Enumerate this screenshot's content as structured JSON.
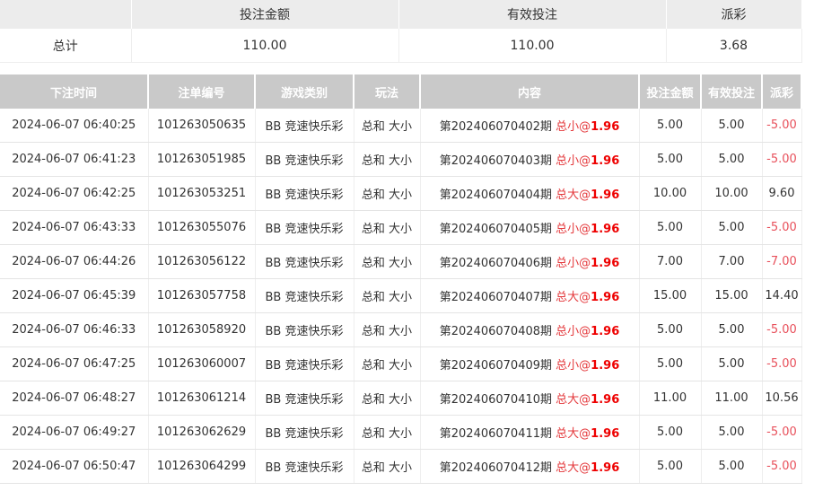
{
  "summary": {
    "headers": [
      "",
      "投注金额",
      "有效投注",
      "派彩"
    ],
    "label": "总计",
    "amount": "110.00",
    "valid": "110.00",
    "payout": "3.68"
  },
  "colors": {
    "red": "#e4393c",
    "header_bg": "#c9c9c9"
  },
  "table": {
    "headers": [
      "下注时间",
      "注单编号",
      "游戏类别",
      "玩法",
      "内容",
      "投注金额",
      "有效投注",
      "派彩"
    ],
    "rows": [
      {
        "time": "2024-06-07 06:40:25",
        "id": "101263050635",
        "game": "BB 竞速快乐彩",
        "play": "总和 大小",
        "period": "第202406070402期",
        "pick": "总小",
        "at": "@",
        "odds": "1.96",
        "amount": "5.00",
        "valid": "5.00",
        "payout": "-5.00",
        "neg": true
      },
      {
        "time": "2024-06-07 06:41:23",
        "id": "101263051985",
        "game": "BB 竞速快乐彩",
        "play": "总和 大小",
        "period": "第202406070403期",
        "pick": "总小",
        "at": "@",
        "odds": "1.96",
        "amount": "5.00",
        "valid": "5.00",
        "payout": "-5.00",
        "neg": true
      },
      {
        "time": "2024-06-07 06:42:25",
        "id": "101263053251",
        "game": "BB 竞速快乐彩",
        "play": "总和 大小",
        "period": "第202406070404期",
        "pick": "总大",
        "at": "@",
        "odds": "1.96",
        "amount": "10.00",
        "valid": "10.00",
        "payout": "9.60",
        "neg": false
      },
      {
        "time": "2024-06-07 06:43:33",
        "id": "101263055076",
        "game": "BB 竞速快乐彩",
        "play": "总和 大小",
        "period": "第202406070405期",
        "pick": "总小",
        "at": "@",
        "odds": "1.96",
        "amount": "5.00",
        "valid": "5.00",
        "payout": "-5.00",
        "neg": true
      },
      {
        "time": "2024-06-07 06:44:26",
        "id": "101263056122",
        "game": "BB 竞速快乐彩",
        "play": "总和 大小",
        "period": "第202406070406期",
        "pick": "总小",
        "at": "@",
        "odds": "1.96",
        "amount": "7.00",
        "valid": "7.00",
        "payout": "-7.00",
        "neg": true
      },
      {
        "time": "2024-06-07 06:45:39",
        "id": "101263057758",
        "game": "BB 竞速快乐彩",
        "play": "总和 大小",
        "period": "第202406070407期",
        "pick": "总大",
        "at": "@",
        "odds": "1.96",
        "amount": "15.00",
        "valid": "15.00",
        "payout": "14.40",
        "neg": false
      },
      {
        "time": "2024-06-07 06:46:33",
        "id": "101263058920",
        "game": "BB 竞速快乐彩",
        "play": "总和 大小",
        "period": "第202406070408期",
        "pick": "总小",
        "at": "@",
        "odds": "1.96",
        "amount": "5.00",
        "valid": "5.00",
        "payout": "-5.00",
        "neg": true
      },
      {
        "time": "2024-06-07 06:47:25",
        "id": "101263060007",
        "game": "BB 竞速快乐彩",
        "play": "总和 大小",
        "period": "第202406070409期",
        "pick": "总小",
        "at": "@",
        "odds": "1.96",
        "amount": "5.00",
        "valid": "5.00",
        "payout": "-5.00",
        "neg": true
      },
      {
        "time": "2024-06-07 06:48:27",
        "id": "101263061214",
        "game": "BB 竞速快乐彩",
        "play": "总和 大小",
        "period": "第202406070410期",
        "pick": "总大",
        "at": "@",
        "odds": "1.96",
        "amount": "11.00",
        "valid": "11.00",
        "payout": "10.56",
        "neg": false
      },
      {
        "time": "2024-06-07 06:49:27",
        "id": "101263062629",
        "game": "BB 竞速快乐彩",
        "play": "总和 大小",
        "period": "第202406070411期",
        "pick": "总大",
        "at": "@",
        "odds": "1.96",
        "amount": "5.00",
        "valid": "5.00",
        "payout": "-5.00",
        "neg": true
      },
      {
        "time": "2024-06-07 06:50:47",
        "id": "101263064299",
        "game": "BB 竞速快乐彩",
        "play": "总和 大小",
        "period": "第202406070412期",
        "pick": "总大",
        "at": "@",
        "odds": "1.96",
        "amount": "5.00",
        "valid": "5.00",
        "payout": "-5.00",
        "neg": true
      }
    ]
  }
}
